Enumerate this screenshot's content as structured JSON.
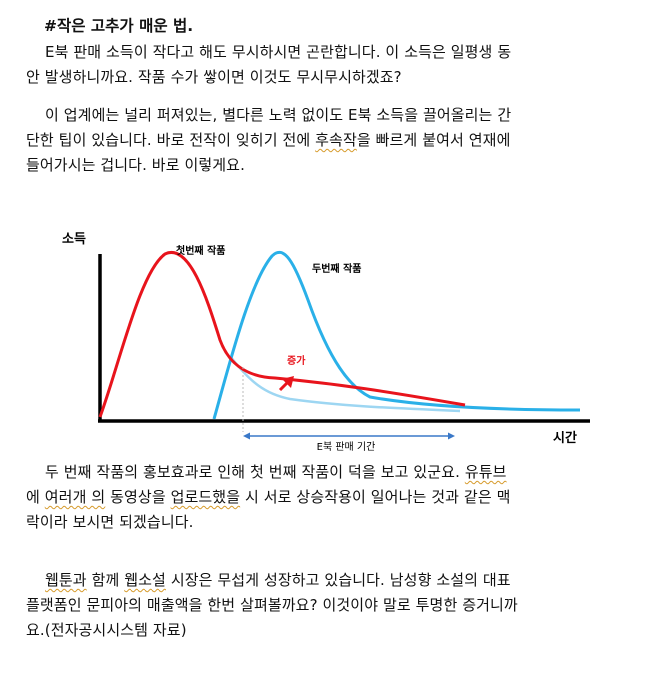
{
  "heading": "#작은 고추가 매운 법.",
  "paragraph1": [
    "E북 판매 소득이 작다고 해도 무시하시면 곤란합니다. 이 소득은 일평생 동",
    "안 발생하니까요. 작품 수가 쌓이면 이것도 무시무시하겠죠?"
  ],
  "paragraph2": {
    "line1": "이 업계에는 널리 퍼져있는, 별다른 노력 없이도 E북 소득을 끌어올리는 간",
    "line2_before": "단한 팁이 있습니다. 바로 전작이 잊히기 전에 ",
    "line2_marked": "후속작",
    "line2_after": "을 빠르게 붙여서 연재에",
    "line3": "들어가시는 겁니다. 바로 이렇게요."
  },
  "chart_data": {
    "type": "line",
    "ylabel": "소득",
    "xlabel": "시간",
    "series": [
      {
        "name": "첫번째 작품",
        "color": "#e8141c"
      },
      {
        "name": "두번째 작품",
        "color": "#2ab0e8"
      }
    ],
    "annotations": {
      "increase": "증가",
      "period": "E북 판매 기간"
    },
    "colors": {
      "first": "#e8141c",
      "second": "#2ab0e8",
      "faded": "#9dd6f2",
      "period_arrow": "#3a78c8"
    }
  },
  "paragraph3": {
    "line1_before": "두 번째 작품의 홍보효과로 인해 첫 번째 작품이 덕을 보고 있군요. ",
    "line1_marked": "유튜브",
    "line2_before": "에 ",
    "line2_marked1": "여러개 의",
    "line2_middle": " 동영상을 ",
    "line2_marked2": "업로드했을",
    "line2_after": " 시 서로 상승작용이 일어나는 것과 같은 맥",
    "line3": "락이라 보시면 되겠습니다."
  },
  "paragraph4": {
    "line1_marked1": "웹툰과",
    "line1_middle": " 함께 ",
    "line1_marked2": "웹소설",
    "line1_after": " 시장은 무섭게 성장하고 있습니다. 남성향 소설의 대표",
    "line2": "플랫폼인 문피아의 매출액을 한번 살펴볼까요? 이것이야 말로 투명한 증거니까",
    "line3": "요.(전자공시시스템 자료)"
  }
}
